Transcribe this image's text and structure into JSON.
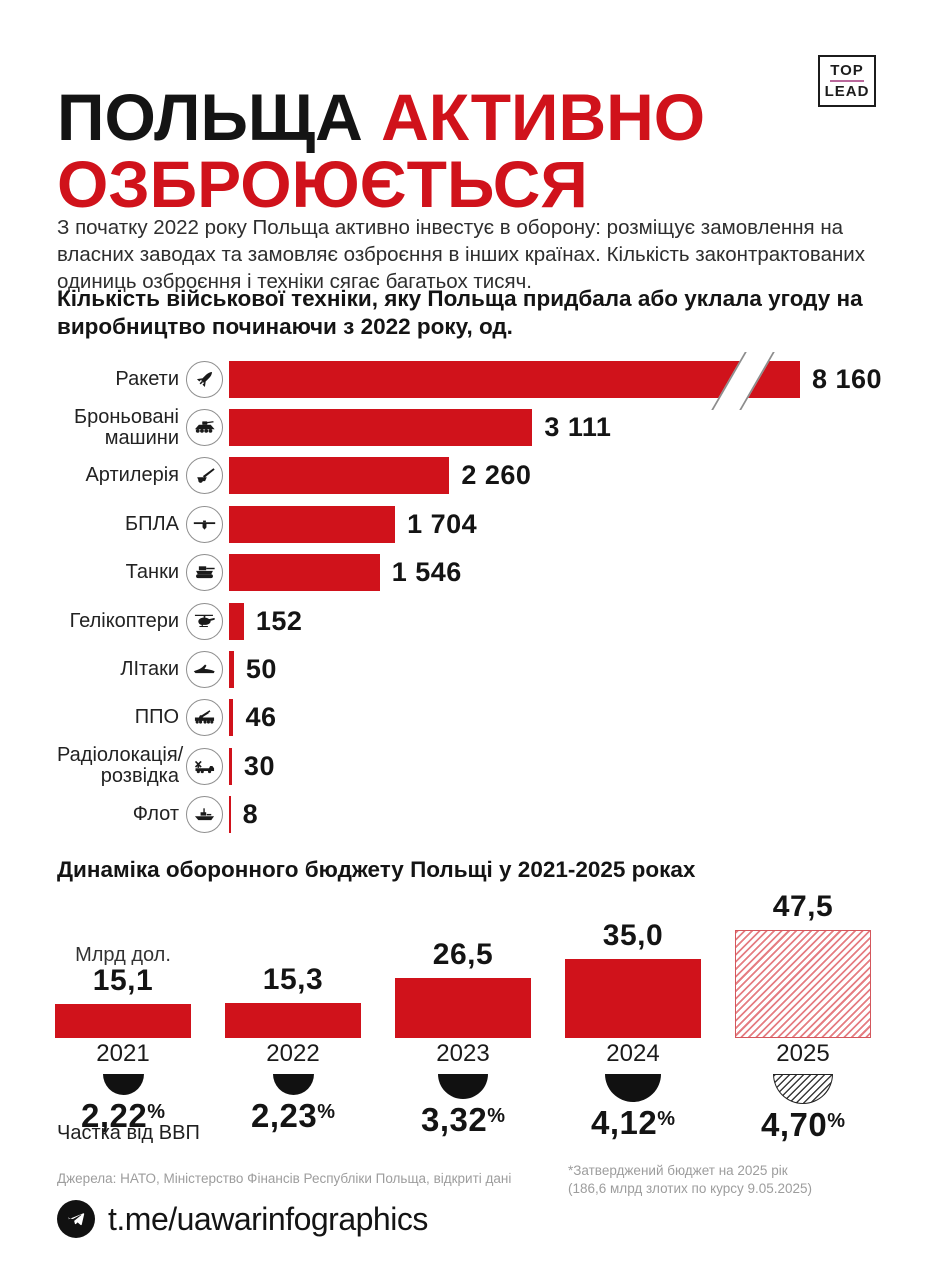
{
  "header": {
    "title_line1_black": "ПОЛЬЩА ",
    "title_line1_red": "АКТИВНО",
    "title_line2_red": "ОЗБРОЮЄТЬСЯ",
    "logo_top": "TOP",
    "logo_lead": "LEAD",
    "intro": "З початку 2022 року Польща активно інвестує в оборону: розміщує замовлення на власних заводах та замовляє озброєння в інших країнах. Кількість законтрактованих одиниць озброєння і техніки сягає багатьох тисяч."
  },
  "chart_data": [
    {
      "type": "bar",
      "orientation": "horizontal",
      "title": "Кількість військової техніки, яку Польща придбала або уклала угоду на виробництво починаючи з 2022 року, од.",
      "categories": [
        "Ракети",
        "Броньовані\nмашини",
        "Артилерія",
        "БПЛА",
        "Танки",
        "Гелікоптери",
        "ЛІтаки",
        "ППО",
        "Радіолокація/\nрозвідка",
        "Флот"
      ],
      "values": [
        8160,
        3111,
        2260,
        1704,
        1546,
        152,
        50,
        46,
        30,
        8
      ],
      "value_labels": [
        "8 160",
        "3 111",
        "2 260",
        "1 704",
        "1 546",
        "152",
        "50",
        "46",
        "30",
        "8"
      ],
      "icons": [
        "rocket-icon",
        "armored-vehicle-icon",
        "artillery-icon",
        "uav-icon",
        "tank-icon",
        "helicopter-icon",
        "jet-icon",
        "air-defense-truck-icon",
        "radar-truck-icon",
        "ship-icon"
      ],
      "axis_break_category": "Ракети",
      "bar_color": "#d0121b",
      "grid": false,
      "legend": false
    },
    {
      "type": "bar",
      "orientation": "vertical",
      "title": "Динаміка оборонного бюджету Польщі у 2021-2025 роках",
      "unit_label": "Млрд дол.",
      "categories": [
        "2021",
        "2022",
        "2023",
        "2024",
        "2025"
      ],
      "values": [
        15.1,
        15.3,
        26.5,
        35.0,
        47.5
      ],
      "value_labels": [
        "15,1",
        "15,3",
        "26,5",
        "35,0",
        "47,5"
      ],
      "gdp_share_label": "Частка від ВВП",
      "gdp_values": [
        2.22,
        2.23,
        3.32,
        4.12,
        4.7
      ],
      "gdp_labels": [
        "2,22",
        "2,23",
        "3,32",
        "4,12",
        "4,70"
      ],
      "percent_sign": "%",
      "projected_category": "2025",
      "bar_color": "#d0121b",
      "grid": false,
      "legend": false
    }
  ],
  "footer": {
    "sources": "Джерела: НАТО, Міністерство Фінансів Республіки Польща, відкриті дані",
    "footnote_line1": "*Затверджений бюджет на 2025 рік",
    "footnote_line2": "(186,6 млрд злотих по курсу 9.05.2025)",
    "telegram_handle": "t.me/uawarinfographics"
  },
  "colors": {
    "accent": "#d0121b",
    "logo_divider": "#b9679b",
    "muted_text": "#9d9d9d"
  }
}
